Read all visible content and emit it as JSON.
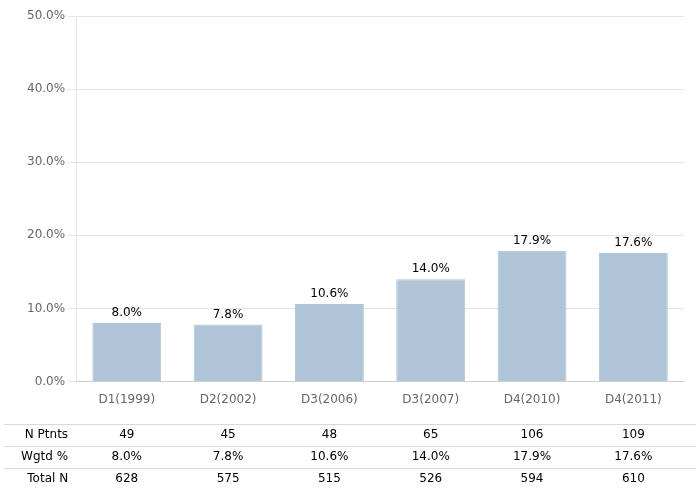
{
  "chart_data": {
    "type": "bar",
    "categories": [
      "D1(1999)",
      "D2(2002)",
      "D3(2006)",
      "D3(2007)",
      "D4(2010)",
      "D4(2011)"
    ],
    "values": [
      8.0,
      7.8,
      10.6,
      14.0,
      17.9,
      17.6
    ],
    "value_labels": [
      "8.0%",
      "7.8%",
      "10.6%",
      "14.0%",
      "17.9%",
      "17.6%"
    ],
    "data_labels": true,
    "color": "#b0c4d8",
    "ylim": [
      0,
      50
    ],
    "yticks": [
      {
        "value": 0,
        "label": "0.0%"
      },
      {
        "value": 10,
        "label": "10.0%"
      },
      {
        "value": 20,
        "label": "20.0%"
      },
      {
        "value": 30,
        "label": "30.0%"
      },
      {
        "value": 40,
        "label": "40.0%"
      },
      {
        "value": 50,
        "label": "50.0%"
      }
    ],
    "grid": true,
    "table": [
      {
        "label": "N Ptnts",
        "cells": [
          "49",
          "45",
          "48",
          "65",
          "106",
          "109"
        ]
      },
      {
        "label": "Wgtd %",
        "cells": [
          "8.0%",
          "7.8%",
          "10.6%",
          "14.0%",
          "17.9%",
          "17.6%"
        ]
      },
      {
        "label": "Total N",
        "cells": [
          "628",
          "575",
          "515",
          "526",
          "594",
          "610"
        ]
      }
    ]
  }
}
